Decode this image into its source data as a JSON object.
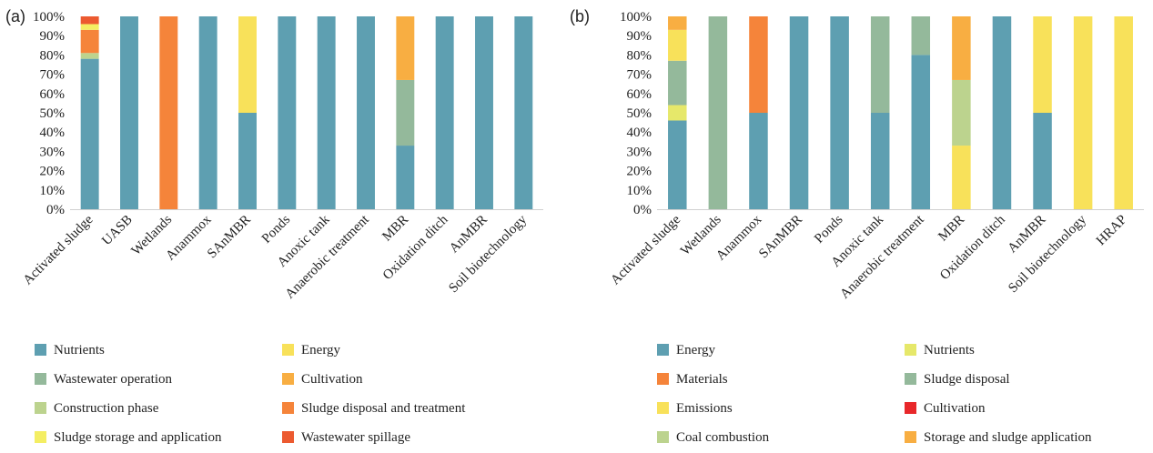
{
  "chart_data": [
    {
      "type": "bar",
      "stacked": true,
      "panel_label": "(a)",
      "categories": [
        "Activated sludge",
        "UASB",
        "Wetlands",
        "Anammox",
        "SAnMBR",
        "Ponds",
        "Anoxic tank",
        "Anaerobic treatment",
        "MBR",
        "Oxidation ditch",
        "AnMBR",
        "Soil biotechnology"
      ],
      "y_ticks": [
        "0%",
        "10%",
        "20%",
        "30%",
        "40%",
        "50%",
        "60%",
        "70%",
        "80%",
        "90%",
        "100%"
      ],
      "ylim": [
        0,
        100
      ],
      "legend_position": "bottom",
      "series": [
        {
          "name": "Nutrients",
          "color": "#5e9fb1",
          "values": [
            78,
            100,
            0,
            100,
            50,
            100,
            100,
            100,
            33,
            100,
            100,
            100
          ]
        },
        {
          "name": "Energy",
          "color": "#f8e15a",
          "values": [
            0,
            0,
            0,
            0,
            50,
            0,
            0,
            0,
            0,
            0,
            0,
            0
          ]
        },
        {
          "name": "Wastewater operation",
          "color": "#94b99b",
          "values": [
            0,
            0,
            0,
            0,
            0,
            0,
            0,
            0,
            34,
            0,
            0,
            0
          ]
        },
        {
          "name": "Cultivation",
          "color": "#f8ae42",
          "values": [
            0,
            0,
            0,
            0,
            0,
            0,
            0,
            0,
            33,
            0,
            0,
            0
          ]
        },
        {
          "name": "Construction phase",
          "color": "#bcd38e",
          "values": [
            3,
            0,
            0,
            0,
            0,
            0,
            0,
            0,
            0,
            0,
            0,
            0
          ]
        },
        {
          "name": "Sludge disposal and treatment",
          "color": "#f5843a",
          "values": [
            12,
            0,
            100,
            0,
            0,
            0,
            0,
            0,
            0,
            0,
            0,
            0
          ]
        },
        {
          "name": "Sludge storage and application",
          "color": "#f4ee63",
          "values": [
            3,
            0,
            0,
            0,
            0,
            0,
            0,
            0,
            0,
            0,
            0,
            0
          ]
        },
        {
          "name": "Wastewater spillage",
          "color": "#ec5a30",
          "values": [
            4,
            0,
            0,
            0,
            0,
            0,
            0,
            0,
            0,
            0,
            0,
            0
          ]
        }
      ]
    },
    {
      "type": "bar",
      "stacked": true,
      "panel_label": "(b)",
      "categories": [
        "Activated sludge",
        "Wetlands",
        "Anammox",
        "SAnMBR",
        "Ponds",
        "Anoxic tank",
        "Anaerobic treatment",
        "MBR",
        "Oxidation ditch",
        "AnMBR",
        "Soil biotechnology",
        "HRAP"
      ],
      "y_ticks": [
        "0%",
        "10%",
        "20%",
        "30%",
        "40%",
        "50%",
        "60%",
        "70%",
        "80%",
        "90%",
        "100%"
      ],
      "ylim": [
        0,
        100
      ],
      "legend_position": "bottom",
      "series": [
        {
          "name": "Energy",
          "color": "#5e9fb1",
          "values": [
            46,
            0,
            50,
            100,
            100,
            50,
            80,
            0,
            100,
            50,
            0,
            0
          ]
        },
        {
          "name": "Nutrients",
          "color": "#e6e86a",
          "values": [
            8,
            0,
            0,
            0,
            0,
            0,
            0,
            0,
            0,
            0,
            0,
            0
          ]
        },
        {
          "name": "Materials",
          "color": "#f5843a",
          "values": [
            0,
            0,
            50,
            0,
            0,
            0,
            0,
            0,
            0,
            0,
            0,
            0
          ]
        },
        {
          "name": "Sludge disposal",
          "color": "#94b99b",
          "values": [
            23,
            100,
            0,
            0,
            0,
            50,
            20,
            0,
            0,
            0,
            0,
            0
          ]
        },
        {
          "name": "Emissions",
          "color": "#f8e15a",
          "values": [
            16,
            0,
            0,
            0,
            0,
            0,
            0,
            33,
            0,
            50,
            100,
            100
          ]
        },
        {
          "name": "Cultivation",
          "color": "#e8272a",
          "values": [
            0,
            0,
            0,
            0,
            0,
            0,
            0,
            0,
            0,
            0,
            0,
            0
          ]
        },
        {
          "name": "Coal combustion",
          "color": "#bcd38e",
          "values": [
            0,
            0,
            0,
            0,
            0,
            0,
            0,
            34,
            0,
            0,
            0,
            0
          ]
        },
        {
          "name": "Storage and sludge application",
          "color": "#f8ae42",
          "values": [
            7,
            0,
            0,
            0,
            0,
            0,
            0,
            33,
            0,
            0,
            0,
            0
          ]
        }
      ]
    }
  ]
}
